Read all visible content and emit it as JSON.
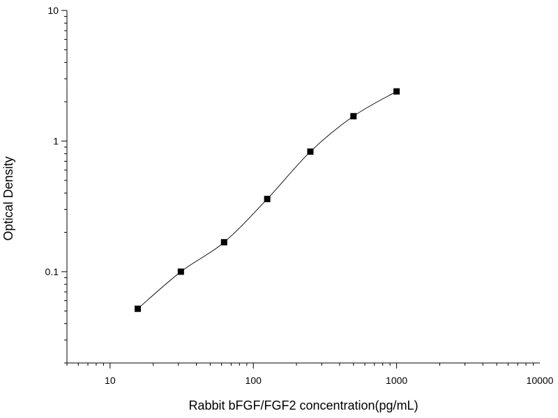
{
  "chart_data": {
    "type": "scatter",
    "xlabel": "Rabbit bFGF/FGF2 concentration(pg/mL)",
    "ylabel": "Optical Density",
    "xscale": "log",
    "yscale": "log",
    "xlim": [
      5,
      10000
    ],
    "ylim": [
      0.02,
      10
    ],
    "x_tick_labels": [
      "10",
      "100",
      "1000",
      "10000"
    ],
    "y_tick_labels": [
      "0.1",
      "1",
      "10"
    ],
    "grid": false,
    "legend": "none",
    "series": [
      {
        "marker": "square",
        "fit": "smooth curve",
        "points": [
          {
            "x": 15.6,
            "y": 0.052
          },
          {
            "x": 31.2,
            "y": 0.1
          },
          {
            "x": 62.5,
            "y": 0.168
          },
          {
            "x": 125,
            "y": 0.36
          },
          {
            "x": 250,
            "y": 0.83
          },
          {
            "x": 500,
            "y": 1.55
          },
          {
            "x": 1000,
            "y": 2.4
          }
        ]
      }
    ],
    "colors": {
      "axis": "#000000",
      "marker": "#000000",
      "line": "#000000",
      "background": "#ffffff"
    }
  }
}
